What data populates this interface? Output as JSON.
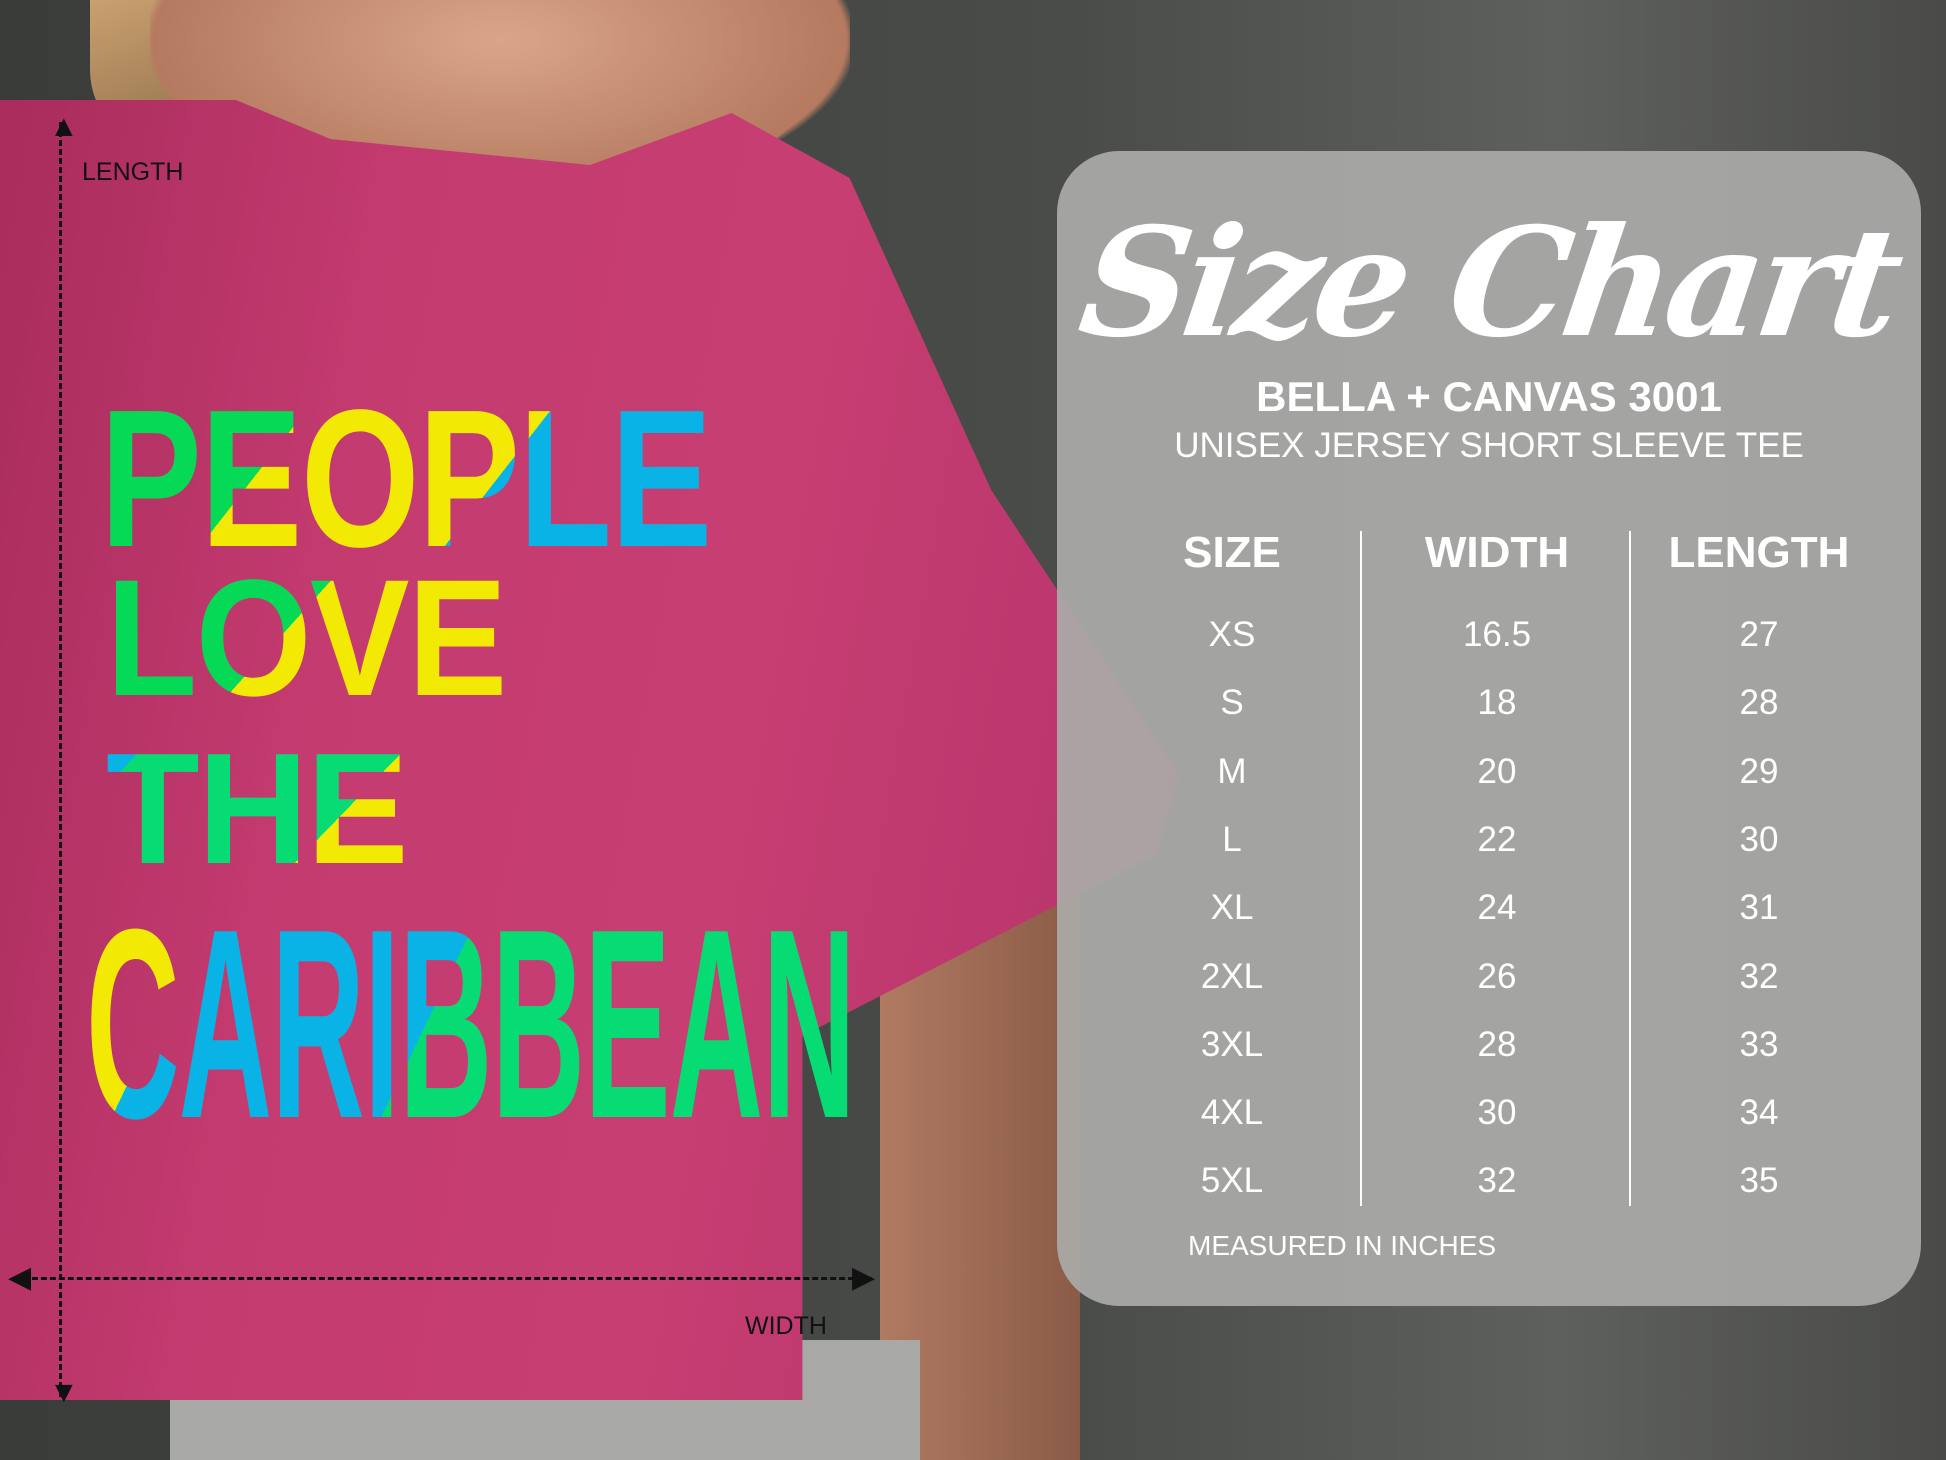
{
  "design": {
    "lines": [
      "PEOPLE",
      "LOVE",
      "THE",
      "CARIBBEAN"
    ]
  },
  "measure_labels": {
    "length": "LENGTH",
    "width": "WIDTH"
  },
  "size_chart": {
    "title": "Size Chart",
    "brand": "BELLA + CANVAS 3001",
    "subtitle": "UNISEX JERSEY SHORT SLEEVE TEE",
    "headers": [
      "SIZE",
      "WIDTH",
      "LENGTH"
    ],
    "rows": [
      [
        "XS",
        "16.5",
        "27"
      ],
      [
        "S",
        "18",
        "28"
      ],
      [
        "M",
        "20",
        "29"
      ],
      [
        "L",
        "22",
        "30"
      ],
      [
        "XL",
        "24",
        "31"
      ],
      [
        "2XL",
        "26",
        "32"
      ],
      [
        "3XL",
        "28",
        "33"
      ],
      [
        "4XL",
        "30",
        "34"
      ],
      [
        "5XL",
        "32",
        "35"
      ]
    ],
    "note": "MEASURED IN INCHES"
  },
  "colors": {
    "shirt": "#c43b70",
    "green": "#06d955",
    "yellow": "#f2ea05",
    "blue": "#0ab3e6",
    "panel": "#aaaaa8"
  }
}
